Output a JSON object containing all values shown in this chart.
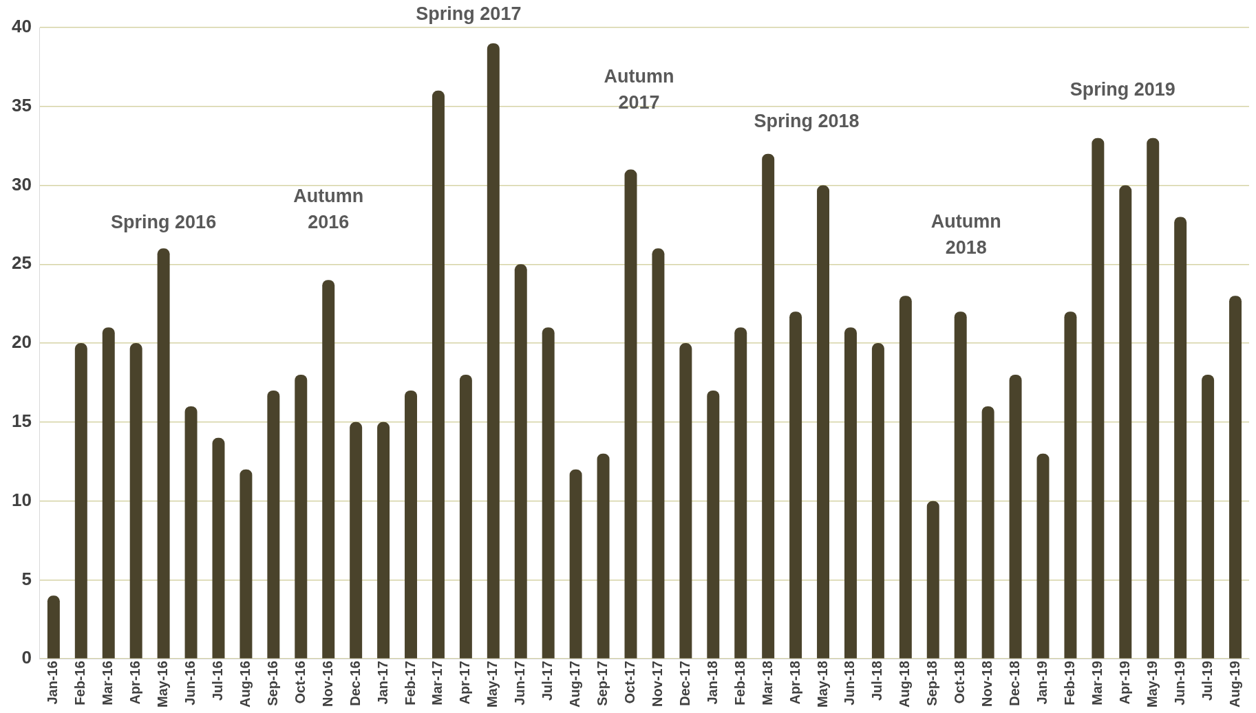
{
  "chart_data": {
    "type": "bar",
    "categories": [
      "Jan-16",
      "Feb-16",
      "Mar-16",
      "Apr-16",
      "May-16",
      "Jun-16",
      "Jul-16",
      "Aug-16",
      "Sep-16",
      "Oct-16",
      "Nov-16",
      "Dec-16",
      "Jan-17",
      "Feb-17",
      "Mar-17",
      "Apr-17",
      "May-17",
      "Jun-17",
      "Jul-17",
      "Aug-17",
      "Sep-17",
      "Oct-17",
      "Nov-17",
      "Dec-17",
      "Jan-18",
      "Feb-18",
      "Mar-18",
      "Apr-18",
      "May-18",
      "Jun-18",
      "Jul-18",
      "Aug-18",
      "Sep-18",
      "Oct-18",
      "Nov-18",
      "Dec-18",
      "Jan-19",
      "Feb-19",
      "Mar-19",
      "Apr-19",
      "May-19",
      "Jun-19",
      "Jul-19",
      "Aug-19"
    ],
    "values": [
      4,
      20,
      21,
      20,
      26,
      16,
      14,
      12,
      17,
      18,
      24,
      15,
      15,
      17,
      36,
      18,
      39,
      25,
      21,
      12,
      13,
      31,
      26,
      20,
      17,
      21,
      32,
      22,
      30,
      21,
      20,
      23,
      10,
      22,
      16,
      18,
      13,
      22,
      33,
      30,
      33,
      28,
      18,
      23
    ],
    "color": "#4a432b",
    "ylim": [
      0,
      40
    ],
    "yticks": [
      0,
      5,
      10,
      15,
      20,
      25,
      30,
      35,
      40
    ],
    "grid": "y",
    "legend": false,
    "annotations": [
      "Spring 2016",
      "Autumn\n2016",
      "Spring 2017",
      "Autumn\n2017",
      "Spring 2018",
      "Autumn\n2018",
      "Spring 2019"
    ]
  }
}
